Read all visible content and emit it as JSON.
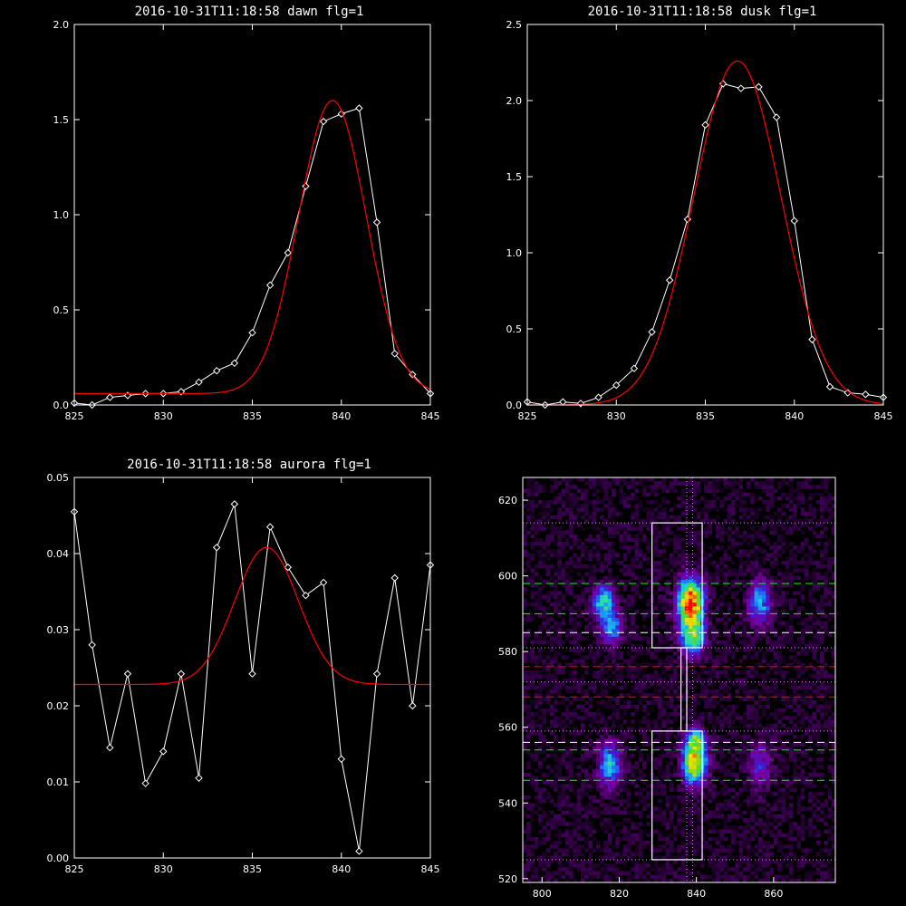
{
  "chart_data": [
    {
      "type": "line",
      "title": "2016-10-31T11:18:58 dawn flg=1",
      "xlim": [
        825,
        845
      ],
      "ylim": [
        0,
        2.0
      ],
      "xticks": [
        825,
        830,
        835,
        840,
        845
      ],
      "yticks": [
        0.0,
        0.5,
        1.0,
        1.5,
        2.0
      ],
      "ytick_labels": [
        "0.0",
        "0.5",
        "1.0",
        "1.5",
        "2.0"
      ],
      "series": [
        {
          "kind": "data",
          "color": "#ffffff",
          "marker": "diamond",
          "x": [
            825,
            826,
            827,
            828,
            829,
            830,
            831,
            832,
            833,
            834,
            835,
            836,
            837,
            838,
            839,
            840,
            841,
            842,
            843,
            844,
            845
          ],
          "y": [
            0.01,
            0.0,
            0.04,
            0.05,
            0.06,
            0.06,
            0.07,
            0.12,
            0.18,
            0.22,
            0.38,
            0.63,
            0.8,
            1.15,
            1.49,
            1.53,
            1.56,
            0.96,
            0.27,
            0.16,
            0.06
          ]
        },
        {
          "kind": "fit",
          "color": "#ff0000",
          "gaussian": {
            "baseline": 0.06,
            "amplitude": 1.54,
            "center": 839.5,
            "sigma": 1.9
          }
        }
      ]
    },
    {
      "type": "line",
      "title": "2016-10-31T11:18:58 dusk flg=1",
      "xlim": [
        825,
        845
      ],
      "ylim": [
        0,
        2.5
      ],
      "xticks": [
        825,
        830,
        835,
        840,
        845
      ],
      "yticks": [
        0.0,
        0.5,
        1.0,
        1.5,
        2.0,
        2.5
      ],
      "ytick_labels": [
        "0.0",
        "0.5",
        "1.0",
        "1.5",
        "2.0",
        "2.5"
      ],
      "series": [
        {
          "kind": "data",
          "color": "#ffffff",
          "marker": "diamond",
          "x": [
            825,
            826,
            827,
            828,
            829,
            830,
            831,
            832,
            833,
            834,
            835,
            836,
            837,
            838,
            839,
            840,
            841,
            842,
            843,
            844,
            845
          ],
          "y": [
            0.02,
            0.0,
            0.02,
            0.01,
            0.05,
            0.13,
            0.24,
            0.48,
            0.82,
            1.22,
            1.84,
            2.11,
            2.08,
            2.09,
            1.89,
            1.21,
            0.43,
            0.12,
            0.08,
            0.07,
            0.05
          ]
        },
        {
          "kind": "fit",
          "color": "#ff0000",
          "gaussian": {
            "baseline": 0.0,
            "amplitude": 2.26,
            "center": 836.8,
            "sigma": 2.45
          }
        }
      ]
    },
    {
      "type": "line",
      "title": "2016-10-31T11:18:58 aurora flg=1",
      "xlim": [
        825,
        845
      ],
      "ylim": [
        0,
        0.05
      ],
      "xticks": [
        825,
        830,
        835,
        840,
        845
      ],
      "yticks": [
        0.0,
        0.01,
        0.02,
        0.03,
        0.04,
        0.05
      ],
      "ytick_labels": [
        "0.00",
        "0.01",
        "0.02",
        "0.03",
        "0.04",
        "0.05"
      ],
      "series": [
        {
          "kind": "data",
          "color": "#ffffff",
          "marker": "diamond",
          "x": [
            825,
            826,
            827,
            828,
            829,
            830,
            831,
            832,
            833,
            834,
            835,
            836,
            837,
            838,
            839,
            840,
            841,
            842,
            843,
            844,
            845
          ],
          "y": [
            0.0455,
            0.028,
            0.0145,
            0.0242,
            0.0098,
            0.014,
            0.0242,
            0.0105,
            0.0408,
            0.0465,
            0.0242,
            0.0435,
            0.0382,
            0.0345,
            0.0362,
            0.013,
            0.0009,
            0.0242,
            0.0368,
            0.02,
            0.0385
          ]
        },
        {
          "kind": "fit",
          "color": "#ff0000",
          "gaussian": {
            "baseline": 0.0228,
            "amplitude": 0.018,
            "center": 835.8,
            "sigma": 1.8
          }
        }
      ]
    },
    {
      "type": "heatmap",
      "xlim": [
        795,
        876
      ],
      "ylim": [
        519,
        626
      ],
      "xticks": [
        800,
        820,
        840,
        860
      ],
      "yticks": [
        520,
        540,
        560,
        580,
        600,
        620
      ],
      "colormap": [
        "#000000",
        "#3a0050",
        "#7a00a0",
        "#3b1cd6",
        "#1f7fff",
        "#19c6ea",
        "#2fe0a0",
        "#58d820",
        "#cde010",
        "#ffe000",
        "#ff8000",
        "#ff0000"
      ],
      "blobs": [
        {
          "x": 838.5,
          "y": 593,
          "sx": 2.2,
          "sy": 4.0,
          "amp": 1.0
        },
        {
          "x": 839.0,
          "y": 584,
          "sx": 2.2,
          "sy": 3.2,
          "amp": 0.55
        },
        {
          "x": 839.5,
          "y": 551,
          "sx": 2.0,
          "sy": 3.8,
          "amp": 0.8
        },
        {
          "x": 840.0,
          "y": 557,
          "sx": 1.6,
          "sy": 1.8,
          "amp": 0.4
        },
        {
          "x": 816.0,
          "y": 593,
          "sx": 1.8,
          "sy": 3.0,
          "amp": 0.5
        },
        {
          "x": 818.0,
          "y": 586,
          "sx": 1.8,
          "sy": 2.5,
          "amp": 0.4
        },
        {
          "x": 817.5,
          "y": 550,
          "sx": 2.0,
          "sy": 4.0,
          "amp": 0.4
        },
        {
          "x": 856.5,
          "y": 593,
          "sx": 2.0,
          "sy": 4.0,
          "amp": 0.36
        },
        {
          "x": 856.5,
          "y": 550,
          "sx": 2.0,
          "sy": 4.0,
          "amp": 0.22
        }
      ],
      "rectangles": [
        {
          "x0": 828.5,
          "x1": 841.5,
          "y0": 581,
          "y1": 614,
          "color": "#ffffff"
        },
        {
          "x0": 828.5,
          "x1": 841.5,
          "y0": 525,
          "y1": 559,
          "color": "#ffffff"
        },
        {
          "x0": 836.0,
          "x1": 837.5,
          "y0": 559,
          "y1": 581,
          "color": "#ffffff"
        }
      ],
      "horizontal_lines": [
        {
          "y": 614,
          "color": "#dd88ff",
          "style": "dotted"
        },
        {
          "y": 598,
          "color": "#00ff00",
          "style": "dashed"
        },
        {
          "y": 590,
          "color": "#00ff00",
          "style": "dashed"
        },
        {
          "y": 585,
          "color": "#ffffff",
          "style": "dashed"
        },
        {
          "y": 581,
          "color": "#dd88ff",
          "style": "dotted"
        },
        {
          "y": 576,
          "color": "#ff0000",
          "style": "dashed"
        },
        {
          "y": 572,
          "color": "#dd88ff",
          "style": "dotted"
        },
        {
          "y": 568,
          "color": "#ff0000",
          "style": "dashed"
        },
        {
          "y": 559,
          "color": "#dd88ff",
          "style": "dotted"
        },
        {
          "y": 556,
          "color": "#ffffff",
          "style": "dashed"
        },
        {
          "y": 554,
          "color": "#00ff00",
          "style": "dashed"
        },
        {
          "y": 546,
          "color": "#00ff00",
          "style": "dashed"
        },
        {
          "y": 525,
          "color": "#dd88ff",
          "style": "dotted"
        }
      ],
      "vertical_lines": [
        {
          "x": 837.5,
          "color": "#dd88ff",
          "style": "dotted"
        },
        {
          "x": 839.0,
          "color": "#dd88ff",
          "style": "dotted"
        }
      ]
    }
  ]
}
